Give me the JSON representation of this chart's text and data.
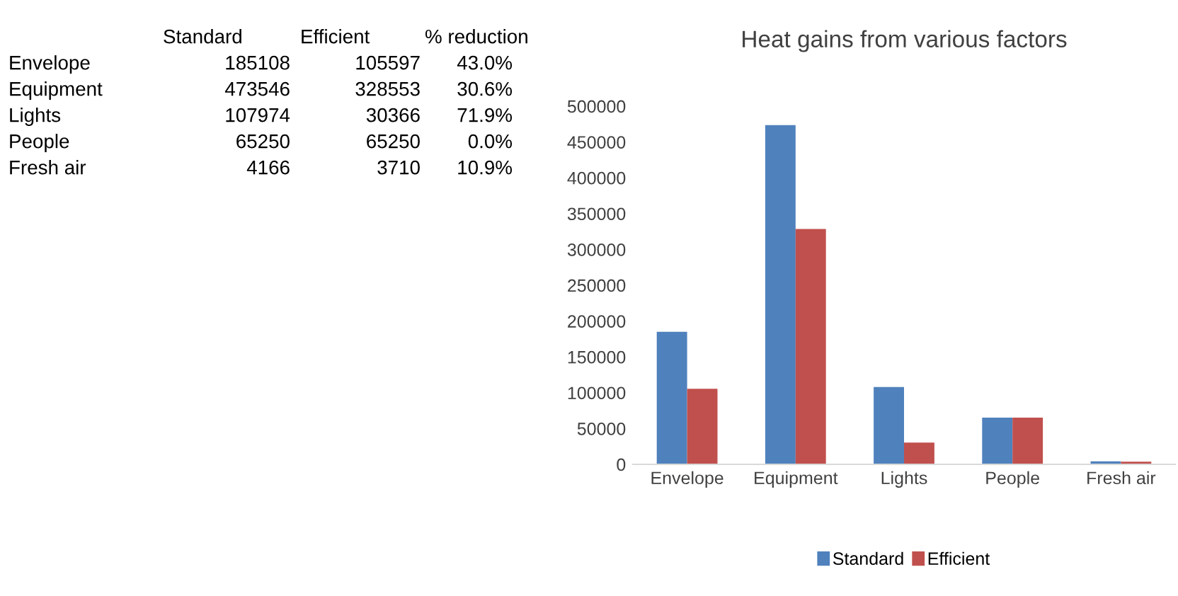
{
  "chart_data": [
    {
      "type": "other",
      "annotations": [
        "Standard",
        "Efficient",
        "% reduction",
        "Envelope",
        "185108",
        "105597",
        "43.0%",
        "Equipment",
        "473546",
        "328553",
        "30.6%",
        "Lights",
        "107974",
        "30366",
        "71.9%",
        "People",
        "65250",
        "65250",
        "0.0%",
        "Fresh air",
        "4166",
        "3710",
        "10.9%"
      ]
    },
    {
      "type": "bar",
      "title": "Heat gains from various factors",
      "categories": [
        "Envelope",
        "Equipment",
        "Lights",
        "People",
        "Fresh air"
      ],
      "series": [
        {
          "name": "Standard",
          "color": "#4f81bd",
          "values": [
            185108,
            473546,
            107974,
            65250,
            4166
          ]
        },
        {
          "name": "Efficient",
          "color": "#c0504d",
          "values": [
            105597,
            328553,
            30366,
            65250,
            3710
          ]
        }
      ],
      "ylim": [
        0,
        500000
      ],
      "yticks": [
        0,
        50000,
        100000,
        150000,
        200000,
        250000,
        300000,
        350000,
        400000,
        450000,
        500000
      ],
      "grid": false,
      "legend": "bottom"
    }
  ]
}
